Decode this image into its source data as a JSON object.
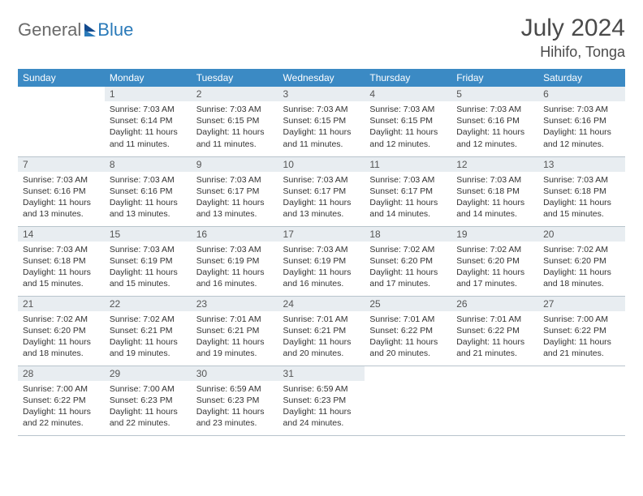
{
  "logo": {
    "text1": "General",
    "text2": "Blue"
  },
  "title": {
    "month": "July 2024",
    "location": "Hihifo, Tonga"
  },
  "colors": {
    "header_bg": "#3b8ac4",
    "daynum_bg": "#e8edf1",
    "border": "#b8c4cc"
  },
  "weekdays": [
    "Sunday",
    "Monday",
    "Tuesday",
    "Wednesday",
    "Thursday",
    "Friday",
    "Saturday"
  ],
  "weeks": [
    [
      null,
      {
        "n": "1",
        "sr": "7:03 AM",
        "ss": "6:14 PM",
        "d": "11 hours and 11 minutes."
      },
      {
        "n": "2",
        "sr": "7:03 AM",
        "ss": "6:15 PM",
        "d": "11 hours and 11 minutes."
      },
      {
        "n": "3",
        "sr": "7:03 AM",
        "ss": "6:15 PM",
        "d": "11 hours and 11 minutes."
      },
      {
        "n": "4",
        "sr": "7:03 AM",
        "ss": "6:15 PM",
        "d": "11 hours and 12 minutes."
      },
      {
        "n": "5",
        "sr": "7:03 AM",
        "ss": "6:16 PM",
        "d": "11 hours and 12 minutes."
      },
      {
        "n": "6",
        "sr": "7:03 AM",
        "ss": "6:16 PM",
        "d": "11 hours and 12 minutes."
      }
    ],
    [
      {
        "n": "7",
        "sr": "7:03 AM",
        "ss": "6:16 PM",
        "d": "11 hours and 13 minutes."
      },
      {
        "n": "8",
        "sr": "7:03 AM",
        "ss": "6:16 PM",
        "d": "11 hours and 13 minutes."
      },
      {
        "n": "9",
        "sr": "7:03 AM",
        "ss": "6:17 PM",
        "d": "11 hours and 13 minutes."
      },
      {
        "n": "10",
        "sr": "7:03 AM",
        "ss": "6:17 PM",
        "d": "11 hours and 13 minutes."
      },
      {
        "n": "11",
        "sr": "7:03 AM",
        "ss": "6:17 PM",
        "d": "11 hours and 14 minutes."
      },
      {
        "n": "12",
        "sr": "7:03 AM",
        "ss": "6:18 PM",
        "d": "11 hours and 14 minutes."
      },
      {
        "n": "13",
        "sr": "7:03 AM",
        "ss": "6:18 PM",
        "d": "11 hours and 15 minutes."
      }
    ],
    [
      {
        "n": "14",
        "sr": "7:03 AM",
        "ss": "6:18 PM",
        "d": "11 hours and 15 minutes."
      },
      {
        "n": "15",
        "sr": "7:03 AM",
        "ss": "6:19 PM",
        "d": "11 hours and 15 minutes."
      },
      {
        "n": "16",
        "sr": "7:03 AM",
        "ss": "6:19 PM",
        "d": "11 hours and 16 minutes."
      },
      {
        "n": "17",
        "sr": "7:03 AM",
        "ss": "6:19 PM",
        "d": "11 hours and 16 minutes."
      },
      {
        "n": "18",
        "sr": "7:02 AM",
        "ss": "6:20 PM",
        "d": "11 hours and 17 minutes."
      },
      {
        "n": "19",
        "sr": "7:02 AM",
        "ss": "6:20 PM",
        "d": "11 hours and 17 minutes."
      },
      {
        "n": "20",
        "sr": "7:02 AM",
        "ss": "6:20 PM",
        "d": "11 hours and 18 minutes."
      }
    ],
    [
      {
        "n": "21",
        "sr": "7:02 AM",
        "ss": "6:20 PM",
        "d": "11 hours and 18 minutes."
      },
      {
        "n": "22",
        "sr": "7:02 AM",
        "ss": "6:21 PM",
        "d": "11 hours and 19 minutes."
      },
      {
        "n": "23",
        "sr": "7:01 AM",
        "ss": "6:21 PM",
        "d": "11 hours and 19 minutes."
      },
      {
        "n": "24",
        "sr": "7:01 AM",
        "ss": "6:21 PM",
        "d": "11 hours and 20 minutes."
      },
      {
        "n": "25",
        "sr": "7:01 AM",
        "ss": "6:22 PM",
        "d": "11 hours and 20 minutes."
      },
      {
        "n": "26",
        "sr": "7:01 AM",
        "ss": "6:22 PM",
        "d": "11 hours and 21 minutes."
      },
      {
        "n": "27",
        "sr": "7:00 AM",
        "ss": "6:22 PM",
        "d": "11 hours and 21 minutes."
      }
    ],
    [
      {
        "n": "28",
        "sr": "7:00 AM",
        "ss": "6:22 PM",
        "d": "11 hours and 22 minutes."
      },
      {
        "n": "29",
        "sr": "7:00 AM",
        "ss": "6:23 PM",
        "d": "11 hours and 22 minutes."
      },
      {
        "n": "30",
        "sr": "6:59 AM",
        "ss": "6:23 PM",
        "d": "11 hours and 23 minutes."
      },
      {
        "n": "31",
        "sr": "6:59 AM",
        "ss": "6:23 PM",
        "d": "11 hours and 24 minutes."
      },
      null,
      null,
      null
    ]
  ],
  "labels": {
    "sunrise": "Sunrise:",
    "sunset": "Sunset:",
    "daylight": "Daylight:"
  }
}
